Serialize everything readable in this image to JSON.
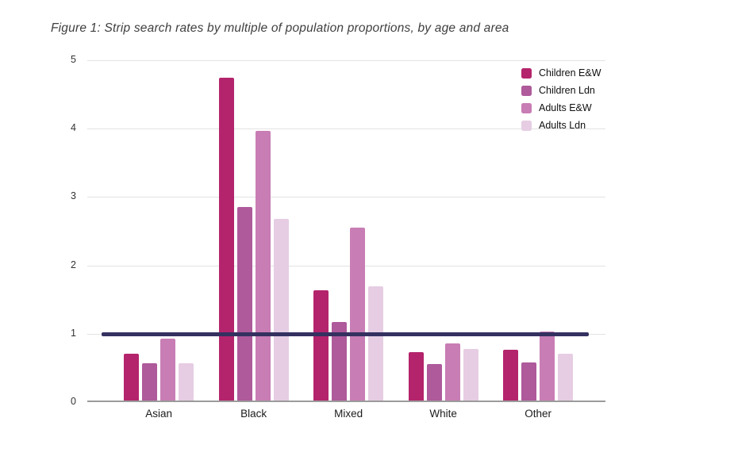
{
  "title": "Figure 1: Strip search rates by multiple of population proportions, by age and area",
  "chart_data": {
    "type": "bar",
    "title": "Figure 1: Strip search rates by multiple of population proportions, by age and area",
    "categories": [
      "Asian",
      "Black",
      "Mixed",
      "White",
      "Other"
    ],
    "series": [
      {
        "name": "Children E&W",
        "color": "#b4246c",
        "values": [
          0.69,
          4.72,
          1.61,
          0.71,
          0.74
        ]
      },
      {
        "name": "Children Ldn",
        "color": "#ae5a9b",
        "values": [
          0.54,
          2.83,
          1.15,
          0.53,
          0.56
        ]
      },
      {
        "name": "Adults E&W",
        "color": "#c87db4",
        "values": [
          0.91,
          3.95,
          2.53,
          0.83,
          1.01
        ]
      },
      {
        "name": "Adults Ldn",
        "color": "#e6cde3",
        "values": [
          0.55,
          2.66,
          1.67,
          0.76,
          0.68
        ]
      }
    ],
    "xlabel": "",
    "ylabel": "",
    "ylim": [
      0,
      5
    ],
    "yticks": [
      0,
      1,
      2,
      3,
      4,
      5
    ],
    "grid": true,
    "reference_line": {
      "value": 1,
      "color": "#343160"
    },
    "legend_position": "top-right"
  },
  "colors": {
    "background": "#ffffff",
    "gridline": "#e3e3e3",
    "axis_line": "#9b9b9b",
    "title_text": "#3f3f3f",
    "tick_text": "#333333",
    "reference_line": "#343160"
  }
}
